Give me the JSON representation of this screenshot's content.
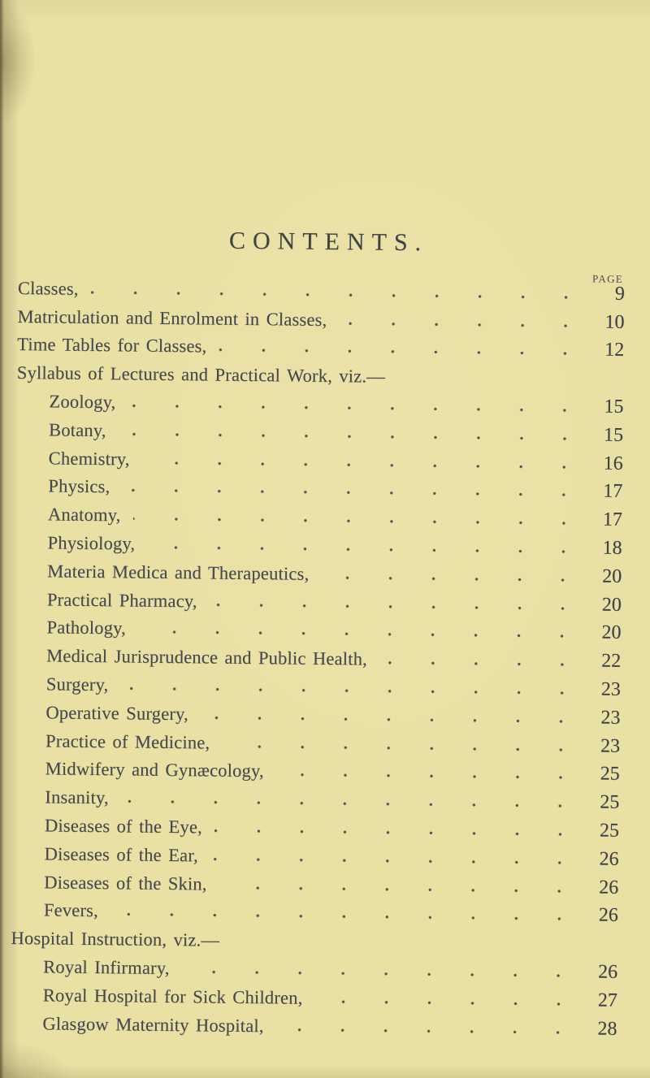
{
  "document": {
    "title": "CONTENTS.",
    "page_column_label": "PAGE"
  },
  "colors": {
    "paper": "#e9e0a4",
    "ink": "#45494e",
    "title_ink": "#3f4449"
  },
  "toc": {
    "entries": [
      {
        "label": "Classes,",
        "page": "9",
        "indent": 0
      },
      {
        "label": "Matriculation and Enrolment in Classes,",
        "page": "10",
        "indent": 0
      },
      {
        "label": "Time Tables for Classes,",
        "page": "12",
        "indent": 0
      },
      {
        "label": "Syllabus of Lectures and Practical Work, viz.—",
        "page": "",
        "indent": 0
      },
      {
        "label": "Zoology,",
        "page": "15",
        "indent": 1
      },
      {
        "label": "Botany,",
        "page": "15",
        "indent": 1
      },
      {
        "label": "Chemistry,",
        "page": "16",
        "indent": 1
      },
      {
        "label": "Physics,",
        "page": "17",
        "indent": 1
      },
      {
        "label": "Anatomy,",
        "page": "17",
        "indent": 1
      },
      {
        "label": "Physiology,",
        "page": "18",
        "indent": 1
      },
      {
        "label": "Materia Medica and Therapeutics,",
        "page": "20",
        "indent": 1
      },
      {
        "label": "Practical Pharmacy,",
        "page": "20",
        "indent": 1
      },
      {
        "label": "Pathology,",
        "page": "20",
        "indent": 1
      },
      {
        "label": "Medical Jurisprudence and Public Health,",
        "page": "22",
        "indent": 1
      },
      {
        "label": "Surgery,",
        "page": "23",
        "indent": 1
      },
      {
        "label": "Operative Surgery,",
        "page": "23",
        "indent": 1
      },
      {
        "label": "Practice of Medicine,",
        "page": "23",
        "indent": 1
      },
      {
        "label": "Midwifery and Gynæcology,",
        "page": "25",
        "indent": 1
      },
      {
        "label": "Insanity,",
        "page": "25",
        "indent": 1
      },
      {
        "label": "Diseases of the Eye,",
        "page": "25",
        "indent": 1
      },
      {
        "label": "Diseases of the Ear,",
        "page": "26",
        "indent": 1
      },
      {
        "label": "Diseases of the Skin,",
        "page": "26",
        "indent": 1
      },
      {
        "label": "Fevers,",
        "page": "26",
        "indent": 1
      },
      {
        "label": "Hospital Instruction, viz.—",
        "page": "",
        "indent": 0
      },
      {
        "label": "Royal Infirmary,",
        "page": "26",
        "indent": 1
      },
      {
        "label": "Royal Hospital for Sick Children,",
        "page": "27",
        "indent": 1
      },
      {
        "label": "Glasgow Maternity Hospital,",
        "page": "28",
        "indent": 1
      }
    ]
  }
}
